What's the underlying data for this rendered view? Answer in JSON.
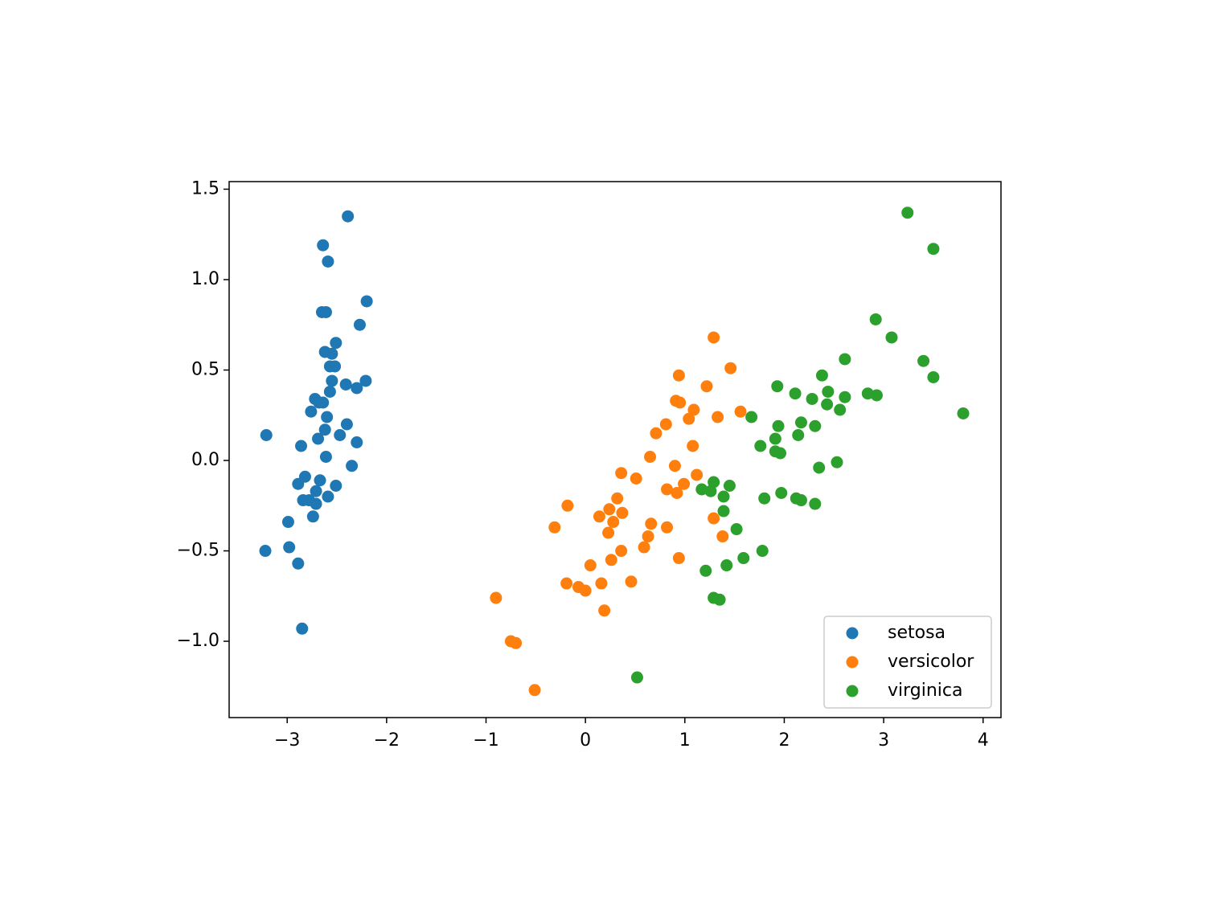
{
  "chart_data": {
    "type": "scatter",
    "series": [
      {
        "name": "setosa",
        "color": "#1f77b4",
        "x": [
          -2.39,
          -2.64,
          -2.59,
          -2.65,
          -2.61,
          -2.2,
          -2.27,
          -2.51,
          -2.62,
          -2.55,
          -2.57,
          -2.52,
          -2.21,
          -2.41,
          -2.3,
          -2.55,
          -2.57,
          -2.72,
          -2.64,
          -2.68,
          -2.76,
          -2.6,
          -2.4,
          -2.62,
          -2.47,
          -2.69,
          -2.3,
          -3.21,
          -2.86,
          -2.61,
          -2.35,
          -2.82,
          -2.67,
          -2.89,
          -2.51,
          -2.71,
          -2.59,
          -2.84,
          -2.78,
          -2.71,
          -2.74,
          -2.99,
          -3.22,
          -2.98,
          -2.89,
          -2.85
        ],
        "values": [
          1.35,
          1.19,
          1.1,
          0.82,
          0.82,
          0.88,
          0.75,
          0.65,
          0.6,
          0.59,
          0.52,
          0.52,
          0.44,
          0.42,
          0.4,
          0.44,
          0.38,
          0.34,
          0.32,
          0.32,
          0.27,
          0.24,
          0.2,
          0.17,
          0.14,
          0.12,
          0.1,
          0.14,
          0.08,
          0.02,
          -0.03,
          -0.09,
          -0.11,
          -0.13,
          -0.14,
          -0.17,
          -0.2,
          -0.22,
          -0.22,
          -0.24,
          -0.31,
          -0.34,
          -0.5,
          -0.48,
          -0.57,
          -0.93
        ]
      },
      {
        "name": "versicolor",
        "color": "#ff7f0e",
        "x": [
          1.29,
          1.46,
          0.94,
          1.22,
          0.91,
          0.95,
          1.09,
          1.56,
          1.33,
          1.04,
          0.81,
          0.71,
          1.08,
          0.65,
          0.9,
          0.36,
          0.51,
          1.12,
          0.99,
          0.82,
          0.92,
          0.32,
          -0.18,
          0.24,
          0.14,
          0.37,
          0.28,
          1.29,
          0.66,
          -0.31,
          0.82,
          0.23,
          0.63,
          1.38,
          0.59,
          0.36,
          0.94,
          0.26,
          0.05,
          -0.19,
          0.16,
          0.46,
          -0.07,
          0.0,
          0.19,
          -0.9,
          -0.75,
          -0.7,
          -0.51
        ],
        "values": [
          0.68,
          0.51,
          0.47,
          0.41,
          0.33,
          0.32,
          0.28,
          0.27,
          0.24,
          0.23,
          0.2,
          0.15,
          0.08,
          0.02,
          -0.03,
          -0.07,
          -0.1,
          -0.08,
          -0.13,
          -0.16,
          -0.18,
          -0.21,
          -0.25,
          -0.27,
          -0.31,
          -0.29,
          -0.34,
          -0.32,
          -0.35,
          -0.37,
          -0.37,
          -0.4,
          -0.42,
          -0.42,
          -0.48,
          -0.5,
          -0.54,
          -0.55,
          -0.58,
          -0.68,
          -0.68,
          -0.67,
          -0.7,
          -0.72,
          -0.83,
          -0.76,
          -1.0,
          -1.01,
          -1.27
        ]
      },
      {
        "name": "virginica",
        "color": "#2ca02c",
        "x": [
          3.24,
          3.5,
          2.92,
          3.08,
          3.4,
          2.61,
          3.5,
          2.38,
          1.93,
          2.11,
          2.44,
          2.84,
          2.93,
          2.28,
          2.61,
          2.43,
          2.56,
          3.8,
          1.67,
          2.17,
          1.94,
          2.31,
          2.14,
          1.91,
          1.76,
          1.91,
          1.96,
          2.53,
          2.35,
          1.17,
          1.26,
          1.45,
          1.29,
          1.39,
          1.97,
          1.8,
          2.12,
          2.17,
          2.31,
          1.39,
          1.52,
          1.78,
          1.59,
          1.42,
          1.21,
          1.29,
          1.35,
          0.52
        ],
        "values": [
          1.37,
          1.17,
          0.78,
          0.68,
          0.55,
          0.56,
          0.46,
          0.47,
          0.41,
          0.37,
          0.38,
          0.37,
          0.36,
          0.34,
          0.35,
          0.31,
          0.28,
          0.26,
          0.24,
          0.21,
          0.19,
          0.19,
          0.14,
          0.12,
          0.08,
          0.05,
          0.04,
          -0.01,
          -0.04,
          -0.16,
          -0.17,
          -0.14,
          -0.12,
          -0.2,
          -0.18,
          -0.21,
          -0.21,
          -0.22,
          -0.24,
          -0.28,
          -0.38,
          -0.5,
          -0.54,
          -0.58,
          -0.61,
          -0.76,
          -0.77,
          -1.2
        ]
      }
    ],
    "xlim": [
      -3.584,
      4.18
    ],
    "ylim": [
      -1.422,
      1.542
    ],
    "xticks": [
      {
        "value": -3,
        "label": "−3"
      },
      {
        "value": -2,
        "label": "−2"
      },
      {
        "value": -1,
        "label": "−1"
      },
      0,
      1,
      2,
      3,
      4
    ],
    "yticks": [
      {
        "value": -1.0,
        "label": "−1.0"
      },
      {
        "value": -0.5,
        "label": "−0.5"
      },
      {
        "value": 0.0,
        "label": "0.0"
      },
      0.5,
      {
        "value": 1.0,
        "label": "1.0"
      },
      1.5
    ],
    "legend": "lower right",
    "grid": false
  }
}
